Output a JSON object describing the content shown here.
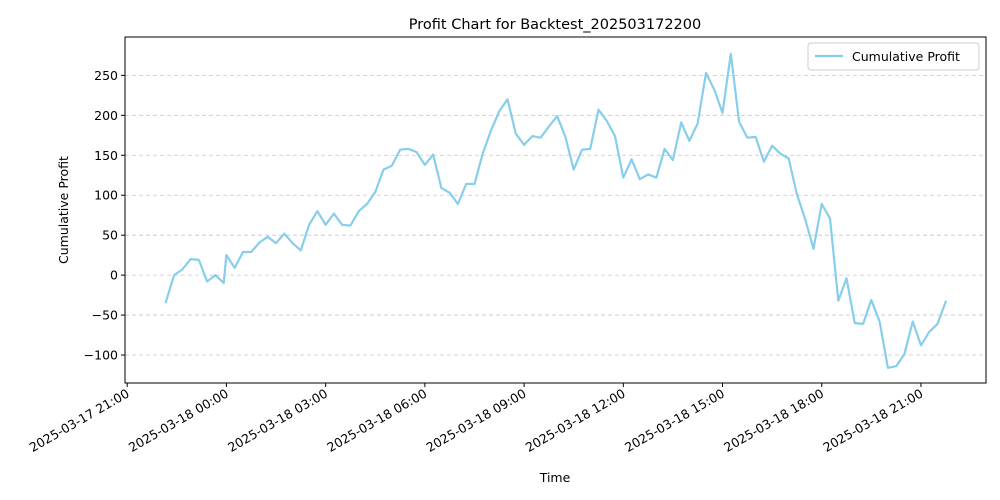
{
  "chart_data": {
    "type": "line",
    "title": "Profit Chart for Backtest_202503172200",
    "xlabel": "Time",
    "ylabel": "Cumulative Profit",
    "legend": {
      "placement": "top-right",
      "entries": [
        "Cumulative Profit"
      ]
    },
    "grid": {
      "y": true,
      "x": false,
      "style": "dashed"
    },
    "ylim": [
      -135,
      298
    ],
    "xlim": [
      "2025-03-17 20:56",
      "2025-03-18 22:58"
    ],
    "x_ticks": [
      "2025-03-17 21:00",
      "2025-03-18 00:00",
      "2025-03-18 03:00",
      "2025-03-18 06:00",
      "2025-03-18 09:00",
      "2025-03-18 12:00",
      "2025-03-18 15:00",
      "2025-03-18 18:00",
      "2025-03-18 21:00"
    ],
    "y_ticks": [
      -100,
      -50,
      0,
      50,
      100,
      150,
      200,
      250
    ],
    "series": [
      {
        "name": "Cumulative Profit",
        "color": "#87ceeb",
        "points": [
          [
            "2025-03-17 22:10",
            -34
          ],
          [
            "2025-03-17 22:25",
            0
          ],
          [
            "2025-03-17 22:40",
            7
          ],
          [
            "2025-03-17 22:55",
            20
          ],
          [
            "2025-03-17 23:10",
            19
          ],
          [
            "2025-03-17 23:25",
            -8
          ],
          [
            "2025-03-17 23:40",
            0
          ],
          [
            "2025-03-17 23:55",
            -10
          ],
          [
            "2025-03-18 00:00",
            25
          ],
          [
            "2025-03-18 00:15",
            9
          ],
          [
            "2025-03-18 00:30",
            29
          ],
          [
            "2025-03-18 00:45",
            29
          ],
          [
            "2025-03-18 01:00",
            41
          ],
          [
            "2025-03-18 01:15",
            48
          ],
          [
            "2025-03-18 01:30",
            40
          ],
          [
            "2025-03-18 01:45",
            52
          ],
          [
            "2025-03-18 02:00",
            40
          ],
          [
            "2025-03-18 02:15",
            31
          ],
          [
            "2025-03-18 02:30",
            63
          ],
          [
            "2025-03-18 02:45",
            80
          ],
          [
            "2025-03-18 03:00",
            63
          ],
          [
            "2025-03-18 03:15",
            77
          ],
          [
            "2025-03-18 03:30",
            63
          ],
          [
            "2025-03-18 03:45",
            62
          ],
          [
            "2025-03-18 04:00",
            80
          ],
          [
            "2025-03-18 04:15",
            89
          ],
          [
            "2025-03-18 04:30",
            104
          ],
          [
            "2025-03-18 04:45",
            132
          ],
          [
            "2025-03-18 05:00",
            137
          ],
          [
            "2025-03-18 05:15",
            157
          ],
          [
            "2025-03-18 05:30",
            158
          ],
          [
            "2025-03-18 05:45",
            154
          ],
          [
            "2025-03-18 06:00",
            138
          ],
          [
            "2025-03-18 06:15",
            151
          ],
          [
            "2025-03-18 06:30",
            109
          ],
          [
            "2025-03-18 06:45",
            103
          ],
          [
            "2025-03-18 07:00",
            89
          ],
          [
            "2025-03-18 07:15",
            114
          ],
          [
            "2025-03-18 07:30",
            114
          ],
          [
            "2025-03-18 07:45",
            152
          ],
          [
            "2025-03-18 08:00",
            181
          ],
          [
            "2025-03-18 08:15",
            205
          ],
          [
            "2025-03-18 08:30",
            220
          ],
          [
            "2025-03-18 08:45",
            177
          ],
          [
            "2025-03-18 09:00",
            163
          ],
          [
            "2025-03-18 09:15",
            174
          ],
          [
            "2025-03-18 09:30",
            172
          ],
          [
            "2025-03-18 09:45",
            186
          ],
          [
            "2025-03-18 10:00",
            199
          ],
          [
            "2025-03-18 10:15",
            173
          ],
          [
            "2025-03-18 10:30",
            132
          ],
          [
            "2025-03-18 10:45",
            157
          ],
          [
            "2025-03-18 11:00",
            158
          ],
          [
            "2025-03-18 11:15",
            207
          ],
          [
            "2025-03-18 11:30",
            193
          ],
          [
            "2025-03-18 11:45",
            174
          ],
          [
            "2025-03-18 12:00",
            122
          ],
          [
            "2025-03-18 12:15",
            145
          ],
          [
            "2025-03-18 12:30",
            120
          ],
          [
            "2025-03-18 12:45",
            126
          ],
          [
            "2025-03-18 13:00",
            122
          ],
          [
            "2025-03-18 13:15",
            158
          ],
          [
            "2025-03-18 13:30",
            144
          ],
          [
            "2025-03-18 13:45",
            191
          ],
          [
            "2025-03-18 14:00",
            168
          ],
          [
            "2025-03-18 14:15",
            190
          ],
          [
            "2025-03-18 14:30",
            253
          ],
          [
            "2025-03-18 14:45",
            232
          ],
          [
            "2025-03-18 15:00",
            203
          ],
          [
            "2025-03-18 15:15",
            277
          ],
          [
            "2025-03-18 15:30",
            192
          ],
          [
            "2025-03-18 15:45",
            172
          ],
          [
            "2025-03-18 16:00",
            173
          ],
          [
            "2025-03-18 16:15",
            142
          ],
          [
            "2025-03-18 16:30",
            162
          ],
          [
            "2025-03-18 16:45",
            152
          ],
          [
            "2025-03-18 17:00",
            146
          ],
          [
            "2025-03-18 17:15",
            101
          ],
          [
            "2025-03-18 17:30",
            70
          ],
          [
            "2025-03-18 17:45",
            33
          ],
          [
            "2025-03-18 18:00",
            89
          ],
          [
            "2025-03-18 18:15",
            71
          ],
          [
            "2025-03-18 18:30",
            -32
          ],
          [
            "2025-03-18 18:45",
            -4
          ],
          [
            "2025-03-18 19:00",
            -60
          ],
          [
            "2025-03-18 19:15",
            -61
          ],
          [
            "2025-03-18 19:30",
            -31
          ],
          [
            "2025-03-18 19:45",
            -58
          ],
          [
            "2025-03-18 20:00",
            -116
          ],
          [
            "2025-03-18 20:15",
            -114
          ],
          [
            "2025-03-18 20:30",
            -99
          ],
          [
            "2025-03-18 20:45",
            -58
          ],
          [
            "2025-03-18 21:00",
            -88
          ],
          [
            "2025-03-18 21:15",
            -71
          ],
          [
            "2025-03-18 21:30",
            -61
          ],
          [
            "2025-03-18 21:45",
            -33
          ]
        ]
      }
    ]
  }
}
